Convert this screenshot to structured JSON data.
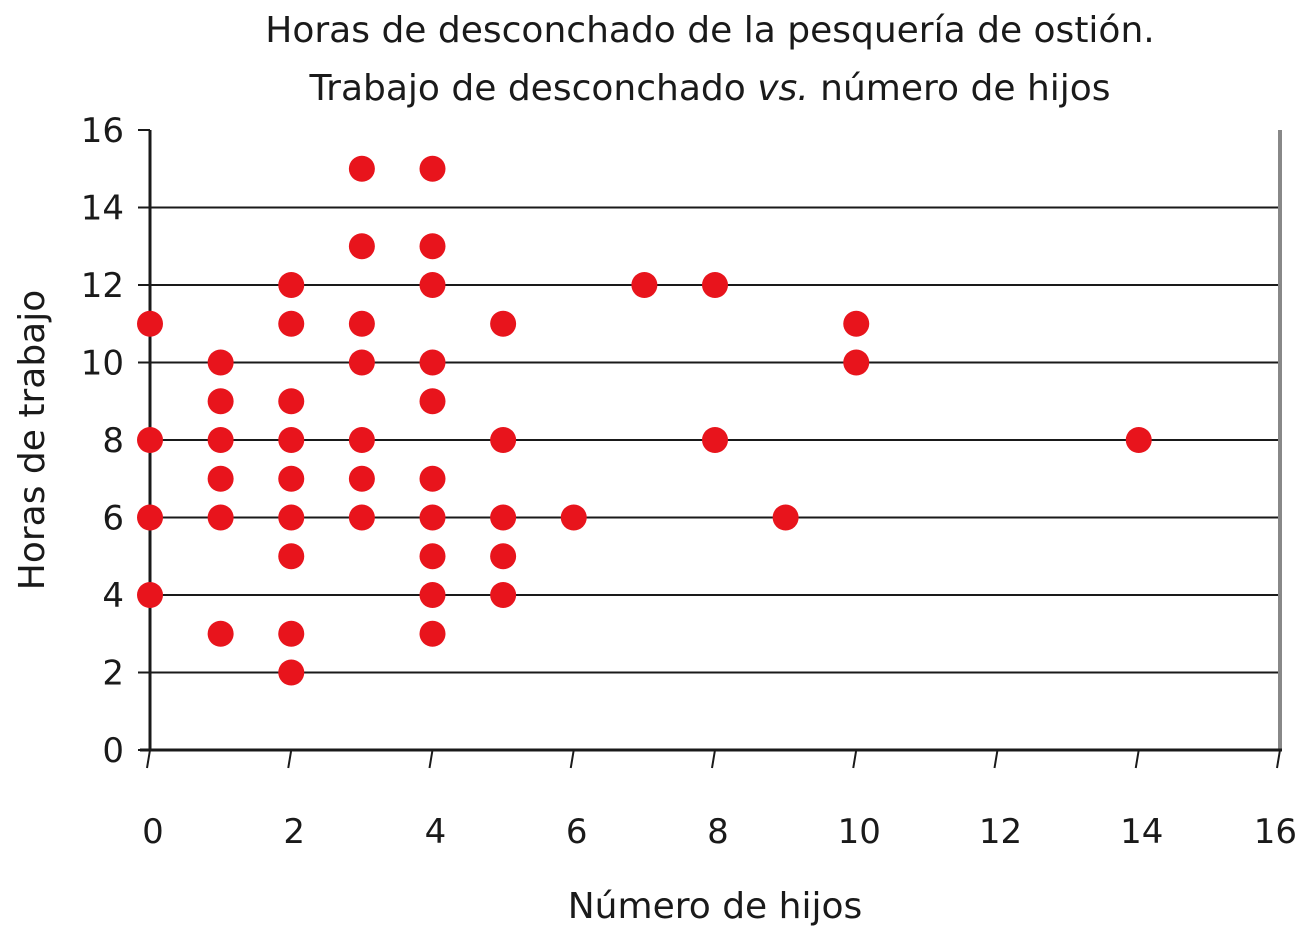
{
  "chart_data": {
    "type": "scatter",
    "title": "Horas de desconchado de la pesquería de ostión.",
    "subtitle_prefix": "Trabajo de desconchado ",
    "subtitle_italic": "vs.",
    "subtitle_suffix": " número de hijos",
    "xlabel": "Número de hijos",
    "ylabel": "Horas de trabajo",
    "xlim": [
      0,
      16
    ],
    "ylim": [
      0,
      16
    ],
    "xticks": [
      0,
      2,
      4,
      6,
      8,
      10,
      12,
      14,
      16
    ],
    "yticks": [
      0,
      2,
      4,
      6,
      8,
      10,
      12,
      14,
      16
    ],
    "grid": "horizontal",
    "marker_color": "#e8141c",
    "points": [
      [
        0,
        11
      ],
      [
        0,
        8
      ],
      [
        0,
        6
      ],
      [
        0,
        4
      ],
      [
        1,
        10
      ],
      [
        1,
        9
      ],
      [
        1,
        8
      ],
      [
        1,
        7
      ],
      [
        1,
        6
      ],
      [
        1,
        3
      ],
      [
        2,
        12
      ],
      [
        2,
        11
      ],
      [
        2,
        9
      ],
      [
        2,
        8
      ],
      [
        2,
        7
      ],
      [
        2,
        6
      ],
      [
        2,
        5
      ],
      [
        2,
        3
      ],
      [
        2,
        2
      ],
      [
        3,
        15
      ],
      [
        3,
        13
      ],
      [
        3,
        11
      ],
      [
        3,
        10
      ],
      [
        3,
        8
      ],
      [
        3,
        7
      ],
      [
        3,
        6
      ],
      [
        4,
        15
      ],
      [
        4,
        13
      ],
      [
        4,
        12
      ],
      [
        4,
        10
      ],
      [
        4,
        9
      ],
      [
        4,
        7
      ],
      [
        4,
        6
      ],
      [
        4,
        5
      ],
      [
        4,
        4
      ],
      [
        4,
        3
      ],
      [
        5,
        11
      ],
      [
        5,
        8
      ],
      [
        5,
        6
      ],
      [
        5,
        5
      ],
      [
        5,
        4
      ],
      [
        6,
        6
      ],
      [
        7,
        12
      ],
      [
        8,
        12
      ],
      [
        8,
        8
      ],
      [
        9,
        6
      ],
      [
        10,
        11
      ],
      [
        10,
        10
      ],
      [
        14,
        8
      ]
    ]
  }
}
